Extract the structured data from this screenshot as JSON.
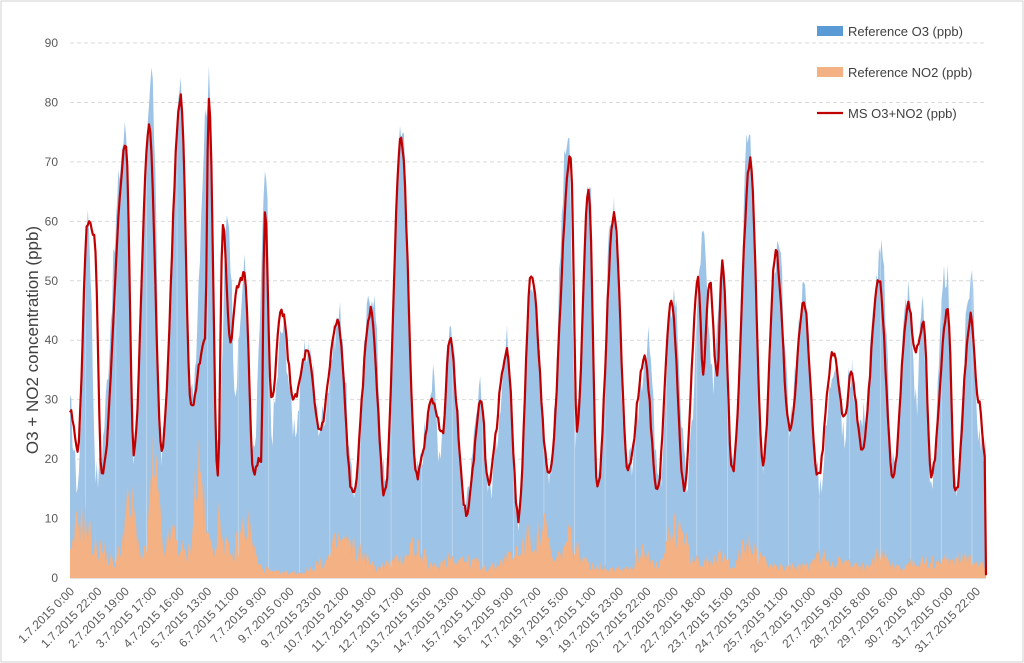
{
  "chart_data": {
    "type": "area",
    "title": "",
    "xlabel": "",
    "ylabel": "O3 + NO2 concentration (ppb)",
    "ylim": [
      0,
      90
    ],
    "yticks": [
      0,
      10,
      20,
      30,
      40,
      50,
      60,
      70,
      80,
      90
    ],
    "grid": true,
    "legend_position": "top-right",
    "x_tick_labels": [
      "1.7.2015 0:00",
      "1.7.2015 22:00",
      "2.7.2015 19:00",
      "3.7.2015 17:00",
      "4.7.2015 16:00",
      "5.7.2015 13:00",
      "6.7.2015 11:00",
      "7.7.2015 9:00",
      "9.7.2015 0:00",
      "9.7.2015 23:00",
      "10.7.2015 21:00",
      "11.7.2015 19:00",
      "12.7.2015 17:00",
      "13.7.2015 15:00",
      "14.7.2015 13:00",
      "15.7.2015 11:00",
      "16.7.2015 9:00",
      "17.7.2015 7:00",
      "18.7.2015 5:00",
      "19.7.2015 1:00",
      "19.7.2015 23:00",
      "20.7.2015 22:00",
      "21.7.2015 20:00",
      "22.7.2015 18:00",
      "23.7.2015 15:00",
      "24.7.2015 13:00",
      "25.7.2015 11:00",
      "26.7.2015 10:00",
      "27.7.2015 9:00",
      "28.7.2015 8:00",
      "29.7.2015 6:00",
      "30.7.2015 4:00",
      "31.7.2015 0:00",
      "31.7.2015 22:00"
    ],
    "series": [
      {
        "name": "Reference O3 (ppb)",
        "kind": "area",
        "color": "#9dc3e6",
        "legend_color": "#5b9bd5",
        "peaks": [
          [
            0,
            28
          ],
          [
            6,
            16
          ],
          [
            14,
            62
          ],
          [
            21,
            17
          ],
          [
            44,
            75
          ],
          [
            50,
            21
          ],
          [
            64,
            85
          ],
          [
            72,
            22
          ],
          [
            87,
            82
          ],
          [
            95,
            30
          ],
          [
            109,
            83
          ],
          [
            116,
            20
          ],
          [
            124,
            62
          ],
          [
            130,
            33
          ],
          [
            137,
            52
          ],
          [
            144,
            20
          ],
          [
            154,
            67
          ],
          [
            158,
            25
          ],
          [
            167,
            42
          ],
          [
            176,
            26
          ],
          [
            187,
            39
          ],
          [
            196,
            26
          ],
          [
            212,
            44
          ],
          [
            222,
            15
          ],
          [
            237,
            49
          ],
          [
            248,
            15
          ],
          [
            260,
            77
          ],
          [
            272,
            17
          ],
          [
            285,
            33
          ],
          [
            290,
            22
          ],
          [
            298,
            42
          ],
          [
            311,
            12
          ],
          [
            323,
            31
          ],
          [
            329,
            15
          ],
          [
            344,
            40
          ],
          [
            352,
            11
          ],
          [
            363,
            50
          ],
          [
            376,
            18
          ],
          [
            391,
            74
          ],
          [
            397,
            25
          ],
          [
            408,
            67
          ],
          [
            414,
            17
          ],
          [
            426,
            62
          ],
          [
            438,
            18
          ],
          [
            454,
            39
          ],
          [
            462,
            16
          ],
          [
            474,
            48
          ],
          [
            484,
            16
          ],
          [
            497,
            57
          ],
          [
            504,
            33
          ],
          [
            512,
            55
          ],
          [
            520,
            20
          ],
          [
            533,
            75
          ],
          [
            544,
            20
          ],
          [
            556,
            55
          ],
          [
            565,
            27
          ],
          [
            576,
            48
          ],
          [
            588,
            16
          ],
          [
            601,
            38
          ],
          [
            608,
            23
          ],
          [
            612,
            35
          ],
          [
            621,
            26
          ],
          [
            637,
            54
          ],
          [
            646,
            19
          ],
          [
            658,
            48
          ],
          [
            665,
            29
          ],
          [
            668,
            47
          ],
          [
            676,
            17
          ],
          [
            688,
            52
          ],
          [
            694,
            15
          ],
          [
            708,
            51
          ],
          [
            713,
            25
          ],
          [
            719,
            21
          ]
        ]
      },
      {
        "name": "Reference NO2 (ppb)",
        "kind": "area",
        "color": "#f4b183",
        "legend_color": "#f4b183",
        "peaks": [
          [
            0,
            4
          ],
          [
            8,
            12
          ],
          [
            20,
            6
          ],
          [
            35,
            3
          ],
          [
            47,
            13
          ],
          [
            58,
            4
          ],
          [
            66,
            19
          ],
          [
            74,
            5
          ],
          [
            80,
            8
          ],
          [
            92,
            4
          ],
          [
            101,
            20
          ],
          [
            110,
            6
          ],
          [
            118,
            10
          ],
          [
            126,
            4
          ],
          [
            138,
            10
          ],
          [
            150,
            2
          ],
          [
            160,
            1
          ],
          [
            180,
            1
          ],
          [
            200,
            3
          ],
          [
            212,
            7
          ],
          [
            226,
            5
          ],
          [
            240,
            2
          ],
          [
            255,
            3
          ],
          [
            270,
            6
          ],
          [
            285,
            2
          ],
          [
            300,
            4
          ],
          [
            315,
            3
          ],
          [
            330,
            2
          ],
          [
            345,
            4
          ],
          [
            360,
            7
          ],
          [
            372,
            9
          ],
          [
            380,
            3
          ],
          [
            392,
            7
          ],
          [
            405,
            3
          ],
          [
            420,
            2
          ],
          [
            440,
            2
          ],
          [
            450,
            6
          ],
          [
            460,
            2
          ],
          [
            478,
            10
          ],
          [
            490,
            3
          ],
          [
            505,
            4
          ],
          [
            520,
            3
          ],
          [
            533,
            6
          ],
          [
            546,
            3
          ],
          [
            560,
            2
          ],
          [
            575,
            2
          ],
          [
            590,
            4
          ],
          [
            605,
            3
          ],
          [
            620,
            2
          ],
          [
            635,
            5
          ],
          [
            650,
            2
          ],
          [
            665,
            3
          ],
          [
            680,
            3
          ],
          [
            695,
            4
          ],
          [
            710,
            3
          ],
          [
            719,
            3
          ]
        ]
      },
      {
        "name": "MS O3+NO2 (ppb)",
        "kind": "line",
        "color": "#c00000",
        "legend_color": "#c00000",
        "peaks": [
          [
            0,
            28
          ],
          [
            6,
            22
          ],
          [
            14,
            60
          ],
          [
            19,
            58
          ],
          [
            25,
            17
          ],
          [
            44,
            73
          ],
          [
            50,
            21
          ],
          [
            62,
            76
          ],
          [
            72,
            22
          ],
          [
            87,
            81
          ],
          [
            95,
            29
          ],
          [
            106,
            40
          ],
          [
            109,
            81
          ],
          [
            116,
            17
          ],
          [
            120,
            59
          ],
          [
            126,
            40
          ],
          [
            131,
            49
          ],
          [
            137,
            51
          ],
          [
            144,
            18
          ],
          [
            150,
            20
          ],
          [
            153,
            62
          ],
          [
            158,
            30
          ],
          [
            166,
            45
          ],
          [
            176,
            30
          ],
          [
            186,
            38
          ],
          [
            196,
            25
          ],
          [
            210,
            43
          ],
          [
            222,
            14
          ],
          [
            236,
            45
          ],
          [
            247,
            14
          ],
          [
            260,
            74
          ],
          [
            272,
            17
          ],
          [
            285,
            30
          ],
          [
            292,
            24
          ],
          [
            298,
            40
          ],
          [
            311,
            11
          ],
          [
            323,
            30
          ],
          [
            328,
            16
          ],
          [
            343,
            38
          ],
          [
            352,
            10
          ],
          [
            362,
            51
          ],
          [
            376,
            17
          ],
          [
            393,
            71
          ],
          [
            398,
            25
          ],
          [
            407,
            66
          ],
          [
            414,
            15
          ],
          [
            427,
            61
          ],
          [
            438,
            18
          ],
          [
            451,
            37
          ],
          [
            461,
            15
          ],
          [
            472,
            47
          ],
          [
            482,
            15
          ],
          [
            493,
            50
          ],
          [
            497,
            35
          ],
          [
            502,
            50
          ],
          [
            508,
            34
          ],
          [
            512,
            53
          ],
          [
            520,
            18
          ],
          [
            534,
            70
          ],
          [
            544,
            19
          ],
          [
            554,
            55
          ],
          [
            565,
            25
          ],
          [
            576,
            46
          ],
          [
            587,
            17
          ],
          [
            599,
            38
          ],
          [
            608,
            27
          ],
          [
            613,
            34
          ],
          [
            622,
            22
          ],
          [
            635,
            50
          ],
          [
            646,
            17
          ],
          [
            658,
            46
          ],
          [
            664,
            38
          ],
          [
            670,
            43
          ],
          [
            676,
            17
          ],
          [
            689,
            45
          ],
          [
            695,
            14
          ],
          [
            707,
            44
          ],
          [
            713,
            30
          ],
          [
            718,
            21
          ]
        ]
      }
    ]
  }
}
